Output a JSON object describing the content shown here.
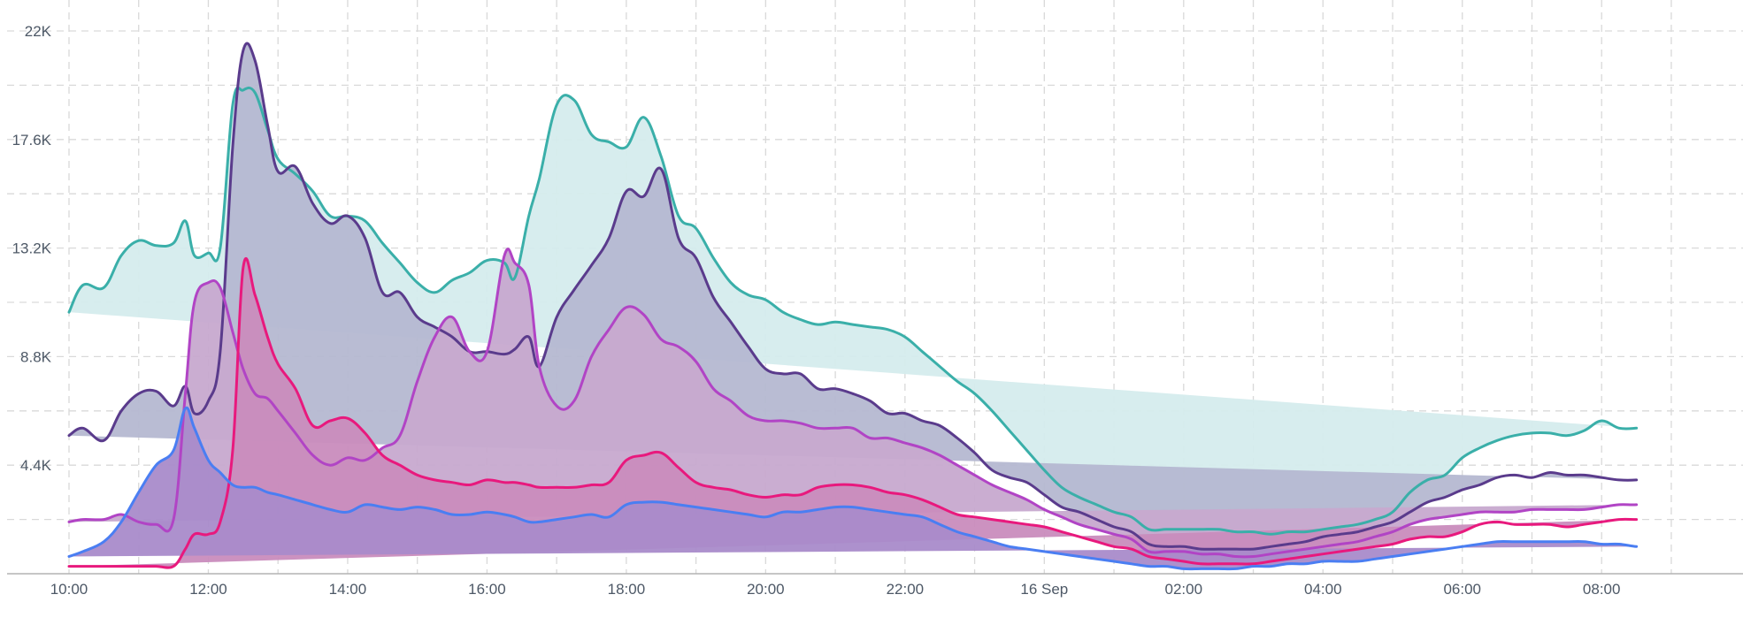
{
  "chart_data": {
    "type": "area",
    "title": "",
    "xlabel": "",
    "ylabel": "",
    "grid": true,
    "legend": "none",
    "ylim": [
      0,
      22000
    ],
    "x_hours": [
      10.0,
      10.2,
      10.5,
      10.75,
      11.0,
      11.25,
      11.5,
      11.67,
      11.8,
      12.0,
      12.17,
      12.35,
      12.5,
      12.67,
      12.85,
      13.0,
      13.25,
      13.5,
      13.75,
      14.0,
      14.25,
      14.5,
      14.75,
      15.0,
      15.25,
      15.5,
      15.75,
      16.0,
      16.25,
      16.4,
      16.6,
      16.75,
      17.0,
      17.25,
      17.5,
      17.75,
      18.0,
      18.25,
      18.5,
      18.75,
      19.0,
      19.25,
      19.5,
      19.75,
      20.0,
      20.25,
      20.5,
      20.75,
      21.0,
      21.25,
      21.5,
      21.75,
      22.0,
      22.25,
      22.5,
      22.75,
      23.0,
      23.25,
      23.5,
      23.75,
      24.0,
      24.25,
      24.5,
      24.75,
      25.0,
      25.25,
      25.5,
      25.75,
      26.0,
      26.25,
      26.5,
      26.75,
      27.0,
      27.25,
      27.5,
      27.75,
      28.0,
      28.25,
      28.5,
      28.75,
      29.0,
      29.25,
      29.5,
      29.75,
      30.0,
      30.25,
      30.5,
      30.75,
      31.0,
      31.25,
      31.5,
      31.75,
      32.0,
      32.25,
      32.5,
      32.75,
      33.0,
      33.25,
      33.5,
      33.75
    ],
    "x_tick_labels": [
      {
        "hour": 10,
        "label": "10:00"
      },
      {
        "hour": 12,
        "label": "12:00"
      },
      {
        "hour": 14,
        "label": "14:00"
      },
      {
        "hour": 16,
        "label": "16:00"
      },
      {
        "hour": 18,
        "label": "18:00"
      },
      {
        "hour": 20,
        "label": "20:00"
      },
      {
        "hour": 22,
        "label": "22:00"
      },
      {
        "hour": 24,
        "label": "16 Sep"
      },
      {
        "hour": 26,
        "label": "02:00"
      },
      {
        "hour": 28,
        "label": "04:00"
      },
      {
        "hour": 30,
        "label": "06:00"
      },
      {
        "hour": 32,
        "label": "08:00"
      }
    ],
    "y_ticks": [
      {
        "value": 4400,
        "label": "4.4K"
      },
      {
        "value": 8800,
        "label": "8.8K"
      },
      {
        "value": 13200,
        "label": "13.2K"
      },
      {
        "value": 17600,
        "label": "17.6K"
      },
      {
        "value": 22000,
        "label": "22K"
      }
    ],
    "y_gridlines": [
      2200,
      4400,
      6600,
      8800,
      11000,
      13200,
      15400,
      17600,
      19800,
      22000
    ],
    "series": [
      {
        "color": "#3aafa9",
        "fill": "#d5eced",
        "values": [
          10600,
          11700,
          11600,
          12900,
          13500,
          13300,
          13400,
          14300,
          12900,
          13000,
          13200,
          19000,
          19600,
          19500,
          18000,
          16800,
          16200,
          15500,
          14500,
          14500,
          14300,
          13400,
          12600,
          11800,
          11400,
          11900,
          12200,
          12700,
          12600,
          12000,
          14500,
          16000,
          19000,
          19200,
          17800,
          17500,
          17300,
          18500,
          16900,
          14500,
          14000,
          12800,
          11800,
          11300,
          11100,
          10600,
          10300,
          10100,
          10200,
          10100,
          10000,
          9900,
          9600,
          9000,
          8400,
          7800,
          7300,
          6600,
          5800,
          5000,
          4200,
          3500,
          3100,
          2800,
          2500,
          2300,
          1800,
          1800,
          1800,
          1800,
          1800,
          1700,
          1700,
          1600,
          1700,
          1700,
          1800,
          1900,
          2000,
          2200,
          2500,
          3300,
          3800,
          4000,
          4700,
          5100,
          5400,
          5600,
          5700,
          5700,
          5600,
          5800,
          6200,
          5900,
          5900,
          6000
        ],
        "z": 0
      },
      {
        "color": "#5a3b8c",
        "fill": "#b5b8d1",
        "values": [
          5600,
          5900,
          5400,
          6600,
          7300,
          7400,
          6800,
          7600,
          6500,
          7000,
          9000,
          17300,
          21200,
          20800,
          18200,
          16300,
          16500,
          15000,
          14200,
          14500,
          13600,
          11400,
          11400,
          10400,
          10000,
          9600,
          9000,
          9000,
          8900,
          9100,
          9600,
          8400,
          10400,
          11500,
          12500,
          13600,
          15500,
          15300,
          16400,
          13600,
          12800,
          11200,
          10200,
          9200,
          8300,
          8100,
          8100,
          7500,
          7500,
          7300,
          7000,
          6500,
          6500,
          6200,
          6000,
          5500,
          4900,
          4200,
          3900,
          3700,
          3200,
          2700,
          2500,
          2200,
          1900,
          1700,
          1200,
          1100,
          1100,
          1000,
          1000,
          1000,
          1000,
          1100,
          1200,
          1300,
          1500,
          1600,
          1700,
          1900,
          2100,
          2500,
          2900,
          3100,
          3400,
          3600,
          3900,
          4000,
          3900,
          4100,
          4000,
          4000,
          3900,
          3800,
          3800,
          3900
        ],
        "z": 1
      },
      {
        "color": "#b144c5",
        "fill": "#c7a9cf",
        "values": [
          2100,
          2200,
          2200,
          2400,
          2100,
          2000,
          2200,
          7300,
          11000,
          11800,
          11600,
          9800,
          8300,
          7300,
          7100,
          6600,
          5700,
          4800,
          4400,
          4700,
          4600,
          5100,
          5600,
          7800,
          9600,
          10400,
          9000,
          9000,
          12900,
          12600,
          11700,
          8400,
          6800,
          7000,
          8800,
          9900,
          10800,
          10500,
          9500,
          9200,
          8600,
          7500,
          7000,
          6400,
          6200,
          6200,
          6100,
          5900,
          5900,
          5900,
          5500,
          5500,
          5300,
          5100,
          4800,
          4400,
          4000,
          3600,
          3300,
          3000,
          2600,
          2300,
          2000,
          1800,
          1600,
          1400,
          900,
          900,
          900,
          800,
          800,
          700,
          700,
          800,
          900,
          1000,
          1100,
          1200,
          1300,
          1500,
          1700,
          2000,
          2200,
          2300,
          2400,
          2500,
          2500,
          2500,
          2600,
          2600,
          2600,
          2600,
          2700,
          2800,
          2800,
          2900
        ],
        "z": 2
      },
      {
        "color": "#e8197d",
        "fill": "#c98cbd",
        "values": [
          300,
          300,
          300,
          300,
          300,
          300,
          300,
          1000,
          1600,
          1600,
          2100,
          5000,
          12400,
          11300,
          9600,
          8500,
          7500,
          6000,
          6200,
          6300,
          5700,
          4800,
          4400,
          4000,
          3800,
          3700,
          3600,
          3800,
          3700,
          3700,
          3600,
          3500,
          3500,
          3500,
          3600,
          3700,
          4600,
          4800,
          4900,
          4300,
          3700,
          3500,
          3400,
          3200,
          3100,
          3200,
          3200,
          3500,
          3600,
          3600,
          3500,
          3300,
          3200,
          3000,
          2700,
          2400,
          2300,
          2200,
          2100,
          2000,
          1900,
          1700,
          1500,
          1300,
          1100,
          1000,
          700,
          600,
          500,
          400,
          400,
          400,
          400,
          500,
          600,
          700,
          800,
          900,
          1000,
          1100,
          1200,
          1400,
          1500,
          1500,
          1700,
          2000,
          2100,
          2000,
          2000,
          2000,
          1900,
          2000,
          2100,
          2200,
          2200,
          2200
        ],
        "z": 3
      },
      {
        "color": "#4a7ef2",
        "fill": "#a98bca",
        "values": [
          700,
          900,
          1300,
          2100,
          3300,
          4400,
          5000,
          6700,
          5900,
          4600,
          4100,
          3600,
          3500,
          3500,
          3300,
          3200,
          3000,
          2800,
          2600,
          2500,
          2800,
          2700,
          2600,
          2700,
          2600,
          2400,
          2400,
          2500,
          2400,
          2300,
          2100,
          2100,
          2200,
          2300,
          2400,
          2300,
          2800,
          2900,
          2900,
          2800,
          2700,
          2600,
          2500,
          2400,
          2300,
          2500,
          2500,
          2600,
          2700,
          2700,
          2600,
          2500,
          2400,
          2300,
          2000,
          1700,
          1500,
          1300,
          1100,
          1000,
          900,
          800,
          700,
          600,
          500,
          400,
          300,
          300,
          200,
          200,
          200,
          200,
          300,
          300,
          400,
          400,
          500,
          500,
          500,
          600,
          700,
          800,
          900,
          1000,
          1100,
          1200,
          1300,
          1300,
          1300,
          1300,
          1300,
          1300,
          1200,
          1200,
          1100,
          1100
        ],
        "z": 4
      }
    ]
  }
}
